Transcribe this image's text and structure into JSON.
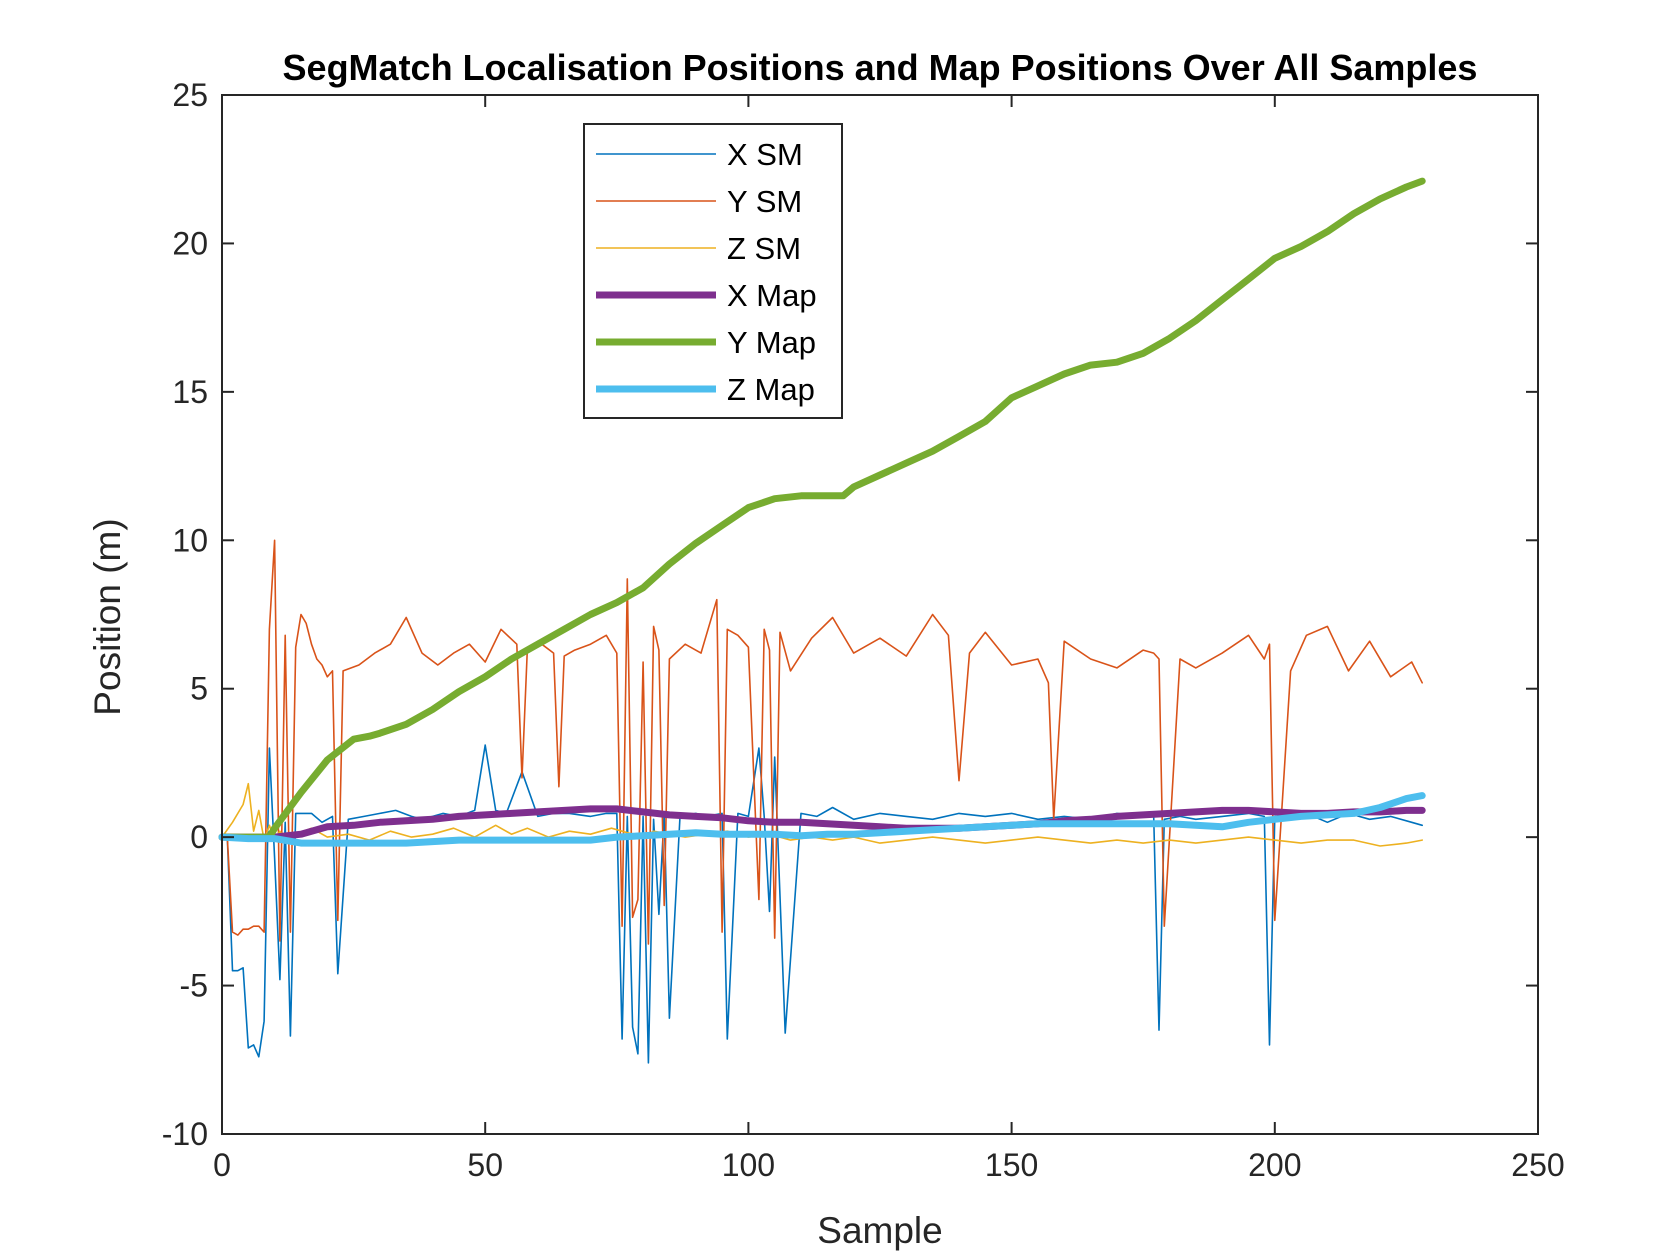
{
  "chart_data": {
    "type": "line",
    "title": "SegMatch Localisation Positions and Map Positions Over All Samples",
    "xlabel": "Sample",
    "ylabel": "Position (m)",
    "xlim": [
      0,
      250
    ],
    "ylim": [
      -10,
      25
    ],
    "xticks": [
      "0",
      "50",
      "100",
      "150",
      "200",
      "250"
    ],
    "yticks": [
      "-10",
      "-5",
      "0",
      "5",
      "10",
      "15",
      "20",
      "25"
    ],
    "legend_position": "upper-left-center",
    "grid": false,
    "series": [
      {
        "name": "X SM",
        "color": "#0072BD",
        "width": "thin",
        "x": [
          1,
          2,
          3,
          4,
          5,
          6,
          7,
          8,
          9,
          10,
          11,
          12,
          13,
          14,
          15,
          17,
          19,
          21,
          22,
          24,
          27,
          30,
          33,
          36,
          38,
          40,
          42,
          45,
          48,
          50,
          52,
          54,
          57,
          60,
          63,
          66,
          70,
          73,
          75,
          76,
          77,
          78,
          79,
          80,
          81,
          82,
          83,
          84,
          85,
          87,
          90,
          92,
          95,
          96,
          98,
          100,
          102,
          103,
          104,
          105,
          107,
          110,
          113,
          116,
          120,
          125,
          130,
          135,
          140,
          145,
          150,
          155,
          160,
          165,
          170,
          175,
          177,
          178,
          179,
          182,
          185,
          190,
          195,
          198,
          199,
          200,
          203,
          206,
          210,
          214,
          218,
          222,
          226,
          228
        ],
        "y": [
          0.0,
          -4.5,
          -4.5,
          -4.4,
          -7.1,
          -7.0,
          -7.4,
          -6.2,
          3.0,
          -0.7,
          -4.8,
          0.5,
          -6.7,
          0.8,
          0.8,
          0.8,
          0.5,
          0.7,
          -4.6,
          0.6,
          0.7,
          0.8,
          0.9,
          0.7,
          0.6,
          0.7,
          0.8,
          0.7,
          0.9,
          3.1,
          0.9,
          0.8,
          2.2,
          0.7,
          0.8,
          0.8,
          0.7,
          0.8,
          0.8,
          -6.8,
          0.7,
          -6.4,
          -7.3,
          0.7,
          -7.6,
          0.6,
          -2.6,
          0.8,
          -6.1,
          0.7,
          0.8,
          0.7,
          0.8,
          -6.8,
          0.8,
          0.7,
          3.0,
          0.7,
          -2.5,
          2.7,
          -6.6,
          0.8,
          0.7,
          1.0,
          0.6,
          0.8,
          0.7,
          0.6,
          0.8,
          0.7,
          0.8,
          0.6,
          0.7,
          0.6,
          0.8,
          0.7,
          0.7,
          -6.5,
          0.6,
          0.7,
          0.6,
          0.7,
          0.8,
          0.7,
          -7.0,
          0.7,
          0.6,
          0.8,
          0.5,
          0.8,
          0.6,
          0.7,
          0.5,
          0.4
        ]
      },
      {
        "name": "Y SM",
        "color": "#D95319",
        "width": "thin",
        "x": [
          1,
          2,
          3,
          4,
          5,
          6,
          7,
          8,
          9,
          10,
          11,
          12,
          13,
          14,
          15,
          16,
          17,
          18,
          19,
          20,
          21,
          22,
          23,
          26,
          29,
          32,
          35,
          38,
          41,
          44,
          47,
          50,
          53,
          56,
          57,
          58,
          60,
          63,
          64,
          65,
          67,
          70,
          73,
          75,
          76,
          77,
          78,
          79,
          80,
          81,
          82,
          83,
          84,
          85,
          88,
          91,
          94,
          95,
          96,
          98,
          100,
          102,
          103,
          104,
          105,
          106,
          108,
          112,
          116,
          120,
          125,
          130,
          135,
          138,
          140,
          142,
          145,
          150,
          155,
          157,
          158,
          160,
          165,
          170,
          175,
          177,
          178,
          179,
          182,
          185,
          190,
          195,
          198,
          199,
          200,
          203,
          206,
          210,
          214,
          218,
          222,
          226,
          228
        ],
        "y": [
          0.0,
          -3.2,
          -3.3,
          -3.1,
          -3.1,
          -3.0,
          -3.0,
          -3.2,
          7.0,
          10.0,
          -3.5,
          6.8,
          -3.2,
          6.4,
          7.5,
          7.2,
          6.5,
          6.0,
          5.8,
          5.4,
          5.6,
          -2.8,
          5.6,
          5.8,
          6.2,
          6.5,
          7.4,
          6.2,
          5.8,
          6.2,
          6.5,
          5.9,
          7.0,
          6.5,
          2.0,
          6.3,
          6.6,
          6.2,
          1.7,
          6.1,
          6.3,
          6.5,
          6.8,
          6.2,
          -3.0,
          8.7,
          -2.7,
          -2.1,
          5.9,
          -3.6,
          7.1,
          6.3,
          -2.3,
          6.0,
          6.5,
          6.2,
          8.0,
          -3.2,
          7.0,
          6.8,
          6.4,
          -2.1,
          7.0,
          6.3,
          -3.4,
          6.9,
          5.6,
          6.7,
          7.4,
          6.2,
          6.7,
          6.1,
          7.5,
          6.8,
          1.9,
          6.2,
          6.9,
          5.8,
          6.0,
          5.2,
          0.6,
          6.6,
          6.0,
          5.7,
          6.3,
          6.2,
          6.0,
          -3.0,
          6.0,
          5.7,
          6.2,
          6.8,
          6.0,
          6.5,
          -2.8,
          5.6,
          6.8,
          7.1,
          5.6,
          6.6,
          5.4,
          5.9,
          5.2
        ]
      },
      {
        "name": "Z SM",
        "color": "#EDB120",
        "width": "thin",
        "x": [
          0,
          2,
          4,
          5,
          6,
          7,
          8,
          9,
          10,
          11,
          12,
          14,
          17,
          20,
          24,
          28,
          32,
          36,
          40,
          44,
          48,
          50,
          52,
          55,
          58,
          62,
          66,
          70,
          74,
          78,
          80,
          82,
          85,
          88,
          92,
          96,
          100,
          104,
          108,
          112,
          116,
          120,
          125,
          130,
          135,
          140,
          145,
          150,
          155,
          160,
          165,
          170,
          175,
          180,
          185,
          190,
          195,
          200,
          205,
          210,
          215,
          220,
          225,
          228
        ],
        "y": [
          0.0,
          0.5,
          1.1,
          1.8,
          0.2,
          0.9,
          -0.1,
          0.4,
          -0.1,
          0.2,
          -0.1,
          0.1,
          0.3,
          0.0,
          0.1,
          -0.1,
          0.2,
          0.0,
          0.1,
          0.3,
          0.0,
          0.2,
          0.4,
          0.1,
          0.3,
          0.0,
          0.2,
          0.1,
          0.3,
          0.1,
          0.0,
          0.2,
          0.1,
          0.0,
          0.1,
          0.2,
          0.0,
          0.1,
          -0.1,
          0.0,
          -0.1,
          0.0,
          -0.2,
          -0.1,
          0.0,
          -0.1,
          -0.2,
          -0.1,
          0.0,
          -0.1,
          -0.2,
          -0.1,
          -0.2,
          -0.1,
          -0.2,
          -0.1,
          0.0,
          -0.1,
          -0.2,
          -0.1,
          -0.1,
          -0.3,
          -0.2,
          -0.1
        ]
      },
      {
        "name": "X Map",
        "color": "#7E2F8E",
        "width": "thick",
        "x": [
          0,
          5,
          10,
          15,
          20,
          25,
          30,
          35,
          40,
          45,
          50,
          55,
          60,
          65,
          70,
          75,
          80,
          85,
          90,
          95,
          100,
          105,
          110,
          115,
          120,
          125,
          130,
          135,
          140,
          145,
          150,
          155,
          160,
          165,
          170,
          175,
          180,
          185,
          190,
          195,
          200,
          205,
          210,
          215,
          220,
          225,
          228
        ],
        "y": [
          0.0,
          0.0,
          0.0,
          0.1,
          0.35,
          0.4,
          0.5,
          0.55,
          0.6,
          0.7,
          0.75,
          0.8,
          0.85,
          0.9,
          0.95,
          0.95,
          0.85,
          0.75,
          0.7,
          0.65,
          0.55,
          0.5,
          0.5,
          0.45,
          0.4,
          0.35,
          0.3,
          0.3,
          0.3,
          0.35,
          0.4,
          0.45,
          0.55,
          0.6,
          0.7,
          0.75,
          0.8,
          0.85,
          0.9,
          0.9,
          0.85,
          0.8,
          0.8,
          0.85,
          0.85,
          0.9,
          0.9
        ]
      },
      {
        "name": "Y Map",
        "color": "#77AC30",
        "width": "thick",
        "x": [
          0,
          5,
          9,
          10,
          15,
          20,
          25,
          28,
          30,
          35,
          40,
          45,
          50,
          55,
          60,
          65,
          70,
          75,
          80,
          85,
          90,
          95,
          100,
          105,
          110,
          115,
          118,
          120,
          125,
          130,
          135,
          140,
          145,
          150,
          155,
          160,
          165,
          170,
          175,
          180,
          185,
          190,
          195,
          200,
          205,
          210,
          215,
          220,
          225,
          228
        ],
        "y": [
          0.0,
          0.0,
          0.0,
          0.3,
          1.5,
          2.6,
          3.3,
          3.4,
          3.5,
          3.8,
          4.3,
          4.9,
          5.4,
          6.0,
          6.5,
          7.0,
          7.5,
          7.9,
          8.4,
          9.2,
          9.9,
          10.5,
          11.1,
          11.4,
          11.5,
          11.5,
          11.5,
          11.8,
          12.2,
          12.6,
          13.0,
          13.5,
          14.0,
          14.8,
          15.2,
          15.6,
          15.9,
          16.0,
          16.3,
          16.8,
          17.4,
          18.1,
          18.8,
          19.5,
          19.9,
          20.4,
          21.0,
          21.5,
          21.9,
          22.1
        ]
      },
      {
        "name": "Z Map",
        "color": "#4DBEEE",
        "width": "thick",
        "x": [
          0,
          5,
          10,
          15,
          20,
          25,
          30,
          35,
          40,
          45,
          50,
          55,
          60,
          65,
          70,
          75,
          80,
          85,
          90,
          95,
          100,
          105,
          110,
          115,
          120,
          125,
          130,
          135,
          140,
          145,
          150,
          155,
          160,
          165,
          170,
          175,
          180,
          185,
          190,
          195,
          200,
          205,
          210,
          215,
          220,
          225,
          228
        ],
        "y": [
          0.0,
          -0.05,
          -0.05,
          -0.2,
          -0.2,
          -0.2,
          -0.2,
          -0.2,
          -0.15,
          -0.1,
          -0.1,
          -0.1,
          -0.1,
          -0.1,
          -0.1,
          0.0,
          0.05,
          0.1,
          0.15,
          0.1,
          0.1,
          0.1,
          0.05,
          0.1,
          0.1,
          0.15,
          0.2,
          0.25,
          0.3,
          0.35,
          0.4,
          0.45,
          0.45,
          0.45,
          0.45,
          0.45,
          0.45,
          0.4,
          0.35,
          0.5,
          0.6,
          0.7,
          0.75,
          0.8,
          1.0,
          1.3,
          1.4
        ]
      }
    ]
  }
}
